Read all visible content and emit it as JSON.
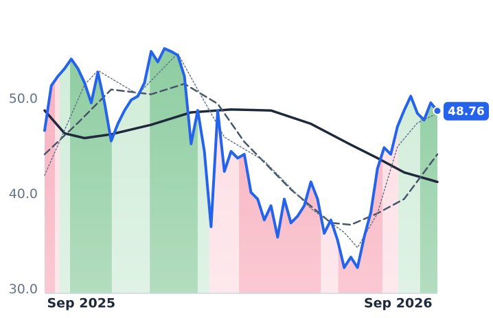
{
  "chart_data": {
    "type": "line",
    "x": [
      0,
      1,
      2,
      3,
      4,
      5,
      6,
      7,
      8,
      9,
      10,
      11,
      12,
      13,
      14,
      15,
      16,
      17,
      18,
      19,
      20,
      21,
      22,
      23,
      24,
      25,
      26,
      27,
      28,
      29,
      30,
      31,
      32,
      33,
      34,
      35,
      36,
      37,
      38,
      39,
      40,
      41,
      42,
      43,
      44,
      45,
      46,
      47,
      48,
      49,
      50,
      51,
      52,
      53,
      54,
      55,
      56,
      57,
      58,
      59
    ],
    "xlim": [
      0,
      59
    ],
    "ylim": [
      29.6,
      60.4
    ],
    "xticks": [
      {
        "value": 5.5,
        "label": "Sep 2025"
      },
      {
        "value": 53.1,
        "label": "Sep 2026"
      }
    ],
    "yticks": [
      {
        "value": 30,
        "label": "30.0"
      },
      {
        "value": 40,
        "label": "40.0"
      },
      {
        "value": 50,
        "label": "50.0"
      }
    ],
    "regions": [
      {
        "from": 0,
        "to": 1.55,
        "color": "#f7a9b9"
      },
      {
        "from": 1.55,
        "to": 2.27,
        "color": "#fcdbe2"
      },
      {
        "from": 2.27,
        "to": 3.82,
        "color": "#cdebd6"
      },
      {
        "from": 3.82,
        "to": 10.1,
        "color": "#86c99a"
      },
      {
        "from": 10.1,
        "to": 15.8,
        "color": "#cdebd6"
      },
      {
        "from": 15.8,
        "to": 23.0,
        "color": "#86c99a"
      },
      {
        "from": 23.0,
        "to": 24.75,
        "color": "#cdebd6"
      },
      {
        "from": 24.75,
        "to": 29.2,
        "color": "#fcdbe2"
      },
      {
        "from": 29.2,
        "to": 41.5,
        "color": "#f7a9b9"
      },
      {
        "from": 41.5,
        "to": 44.1,
        "color": "#fcdbe2"
      },
      {
        "from": 44.1,
        "to": 50.75,
        "color": "#f7a9b9"
      },
      {
        "from": 50.75,
        "to": 53.1,
        "color": "#fcdbe2"
      },
      {
        "from": 53.1,
        "to": 56.4,
        "color": "#cdebd6"
      },
      {
        "from": 56.4,
        "to": 59,
        "color": "#86c99a"
      }
    ],
    "series": [
      {
        "color": "#2563eb",
        "width": 4,
        "style": "solid",
        "values": [
          46.7,
          51.4,
          52.4,
          53.2,
          54.2,
          53.2,
          51.7,
          49.6,
          52.8,
          49.6,
          45.6,
          47.4,
          48.8,
          49.9,
          50.3,
          51.7,
          55.0,
          53.9,
          55.3,
          55.0,
          54.6,
          52.4,
          45.3,
          48.8,
          44.5,
          36.6,
          48.8,
          42.4,
          44.5,
          43.8,
          44.2,
          40.2,
          39.5,
          37.3,
          38.8,
          35.5,
          39.5,
          37.0,
          37.7,
          38.8,
          41.3,
          39.5,
          35.9,
          37.3,
          35.2,
          32.3,
          33.4,
          32.3,
          35.5,
          38.1,
          42.7,
          44.9,
          44.2,
          47.1,
          48.8,
          50.3,
          48.5,
          47.8,
          49.6,
          48.76
        ]
      },
      {
        "color": "#1e293b",
        "width": 3.5,
        "style": "solid",
        "x": [
          0,
          3,
          6,
          10,
          16,
          22,
          28,
          34,
          40,
          46,
          50,
          54,
          59
        ],
        "values": [
          48.8,
          46.4,
          45.9,
          46.3,
          47.3,
          48.6,
          48.9,
          48.8,
          47.4,
          45.2,
          43.8,
          42.3,
          41.3
        ]
      },
      {
        "color": "#475569",
        "width": 2.5,
        "style": "dashed",
        "x": [
          0,
          5,
          10,
          16,
          21,
          26,
          30,
          37,
          43,
          46,
          50,
          54,
          59
        ],
        "values": [
          44.2,
          47.5,
          51.0,
          50.5,
          51.6,
          49.5,
          45.5,
          40.5,
          37.0,
          36.8,
          38.0,
          39.5,
          44.2
        ]
      },
      {
        "color": "#64748b",
        "width": 1.5,
        "style": "dotted",
        "x": [
          0,
          6,
          8,
          14,
          20,
          23,
          27,
          33,
          40,
          45,
          47,
          50,
          53,
          56,
          59
        ],
        "values": [
          42.0,
          51.5,
          53.0,
          50.5,
          54.8,
          51.0,
          46.0,
          43.5,
          38.5,
          36.0,
          34.4,
          38.0,
          45.0,
          47.5,
          48.5
        ]
      }
    ]
  }
}
